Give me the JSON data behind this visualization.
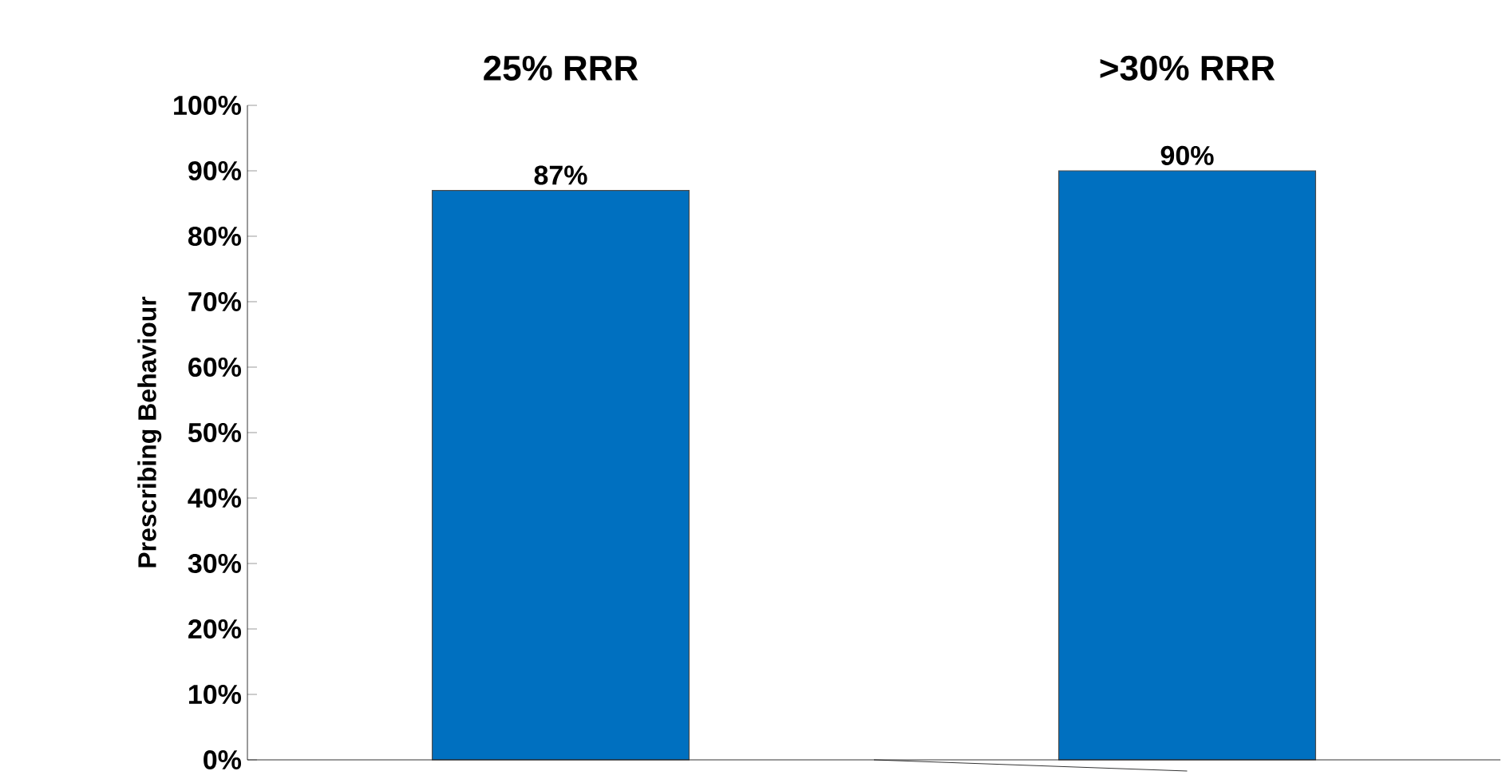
{
  "chart_data": {
    "type": "bar",
    "ylabel": "Prescribing Behaviour",
    "categories": [
      "25% RRR",
      ">30% RRR"
    ],
    "values": [
      87,
      90
    ],
    "value_labels": [
      "87%",
      "90%"
    ],
    "color": "#0070c0",
    "ylim": [
      0,
      100
    ],
    "yticks": [
      {
        "value": 0,
        "label": "0%"
      },
      {
        "value": 10,
        "label": "10%"
      },
      {
        "value": 20,
        "label": "20%"
      },
      {
        "value": 30,
        "label": "30%"
      },
      {
        "value": 40,
        "label": "40%"
      },
      {
        "value": 50,
        "label": "50%"
      },
      {
        "value": 60,
        "label": "60%"
      },
      {
        "value": 70,
        "label": "70%"
      },
      {
        "value": 80,
        "label": "80%"
      },
      {
        "value": 90,
        "label": "90%"
      },
      {
        "value": 100,
        "label": "100%"
      }
    ],
    "grid": false
  }
}
